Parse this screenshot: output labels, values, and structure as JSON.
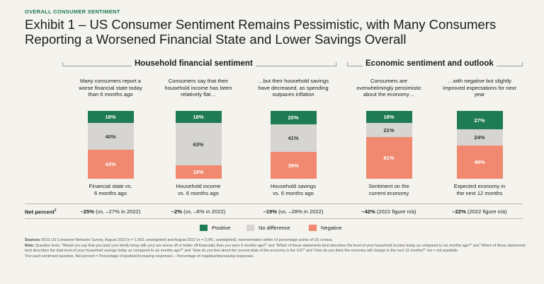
{
  "kicker": "OVERALL CONSUMER SENTIMENT",
  "title_line1": "Exhibit 1 – US Consumer Sentiment Remains Pessimistic, with Many Consumers",
  "title_line2": "Reporting a Worsened Financial State and Lower Savings Overall",
  "sections": {
    "household": "Household financial sentiment",
    "economic": "Economic sentiment and outlook"
  },
  "colors": {
    "positive": "#1e7b53",
    "neutral": "#d6d5d1",
    "negative": "#f08970"
  },
  "chart_data": {
    "type": "bar",
    "stacked": true,
    "normalized_percent": true,
    "categories": [
      "Financial state vs. 6 months ago",
      "Household income vs. 6 months ago",
      "Household savings vs. 6 months ago",
      "Sentiment on the current economy",
      "Expected economy in the next 12 months"
    ],
    "series": [
      {
        "name": "Positive",
        "values": [
          18,
          18,
          20,
          18,
          27
        ]
      },
      {
        "name": "No difference",
        "values": [
          40,
          63,
          41,
          21,
          24
        ]
      },
      {
        "name": "Negative",
        "values": [
          43,
          19,
          39,
          61,
          49
        ]
      }
    ],
    "legend_position": "bottom",
    "bars": [
      {
        "top_caption": "Many consumers report a worse financial state today than 6 months ago",
        "bottom_caption_l1": "Financial state vs.",
        "bottom_caption_l2": "6 months ago",
        "pos_label": "18%",
        "neu_label": "40%",
        "neg_label": "43%",
        "net_bold": "–25%",
        "net_rest": " (vs. –27% in 2022)"
      },
      {
        "top_caption": "Consumers say that their household income has been relatively flat…",
        "bottom_caption_l1": "Household income",
        "bottom_caption_l2": "vs. 6 months ago",
        "pos_label": "18%",
        "neu_label": "63%",
        "neg_label": "19%",
        "net_bold": "–2%",
        "net_rest": " (vs. –6% in 2022)"
      },
      {
        "top_caption": "…but their household savings have decreased, as spending outpaces inflation",
        "bottom_caption_l1": "Household savings",
        "bottom_caption_l2": "vs. 6 months ago",
        "pos_label": "20%",
        "neu_label": "41%",
        "neg_label": "39%",
        "net_bold": "–19%",
        "net_rest": " (vs. –28% in 2022)"
      },
      {
        "top_caption": "Consumers are overwhelmingly pessimistic about the economy…",
        "bottom_caption_l1": "Sentiment on the",
        "bottom_caption_l2": "current economy",
        "pos_label": "18%",
        "neu_label": "21%",
        "neg_label": "61%",
        "net_bold": "–42%",
        "net_rest": " (2022 figure n/a)"
      },
      {
        "top_caption": "…with negative but slightly improved expectations for next year",
        "bottom_caption_l1": "Expected economy in",
        "bottom_caption_l2": "the next 12 months",
        "pos_label": "27%",
        "neu_label": "24%",
        "neg_label": "49%",
        "net_bold": "–22%",
        "net_rest": " (2022 figure n/a)"
      }
    ]
  },
  "net_percent_label": "Net percent",
  "net_percent_sup": "1",
  "legend": {
    "positive": "Positive",
    "neutral": "No difference",
    "negative": "Negative"
  },
  "notes": {
    "sources_label": "Sources:",
    "sources": " BCG US Consumer Behavior Survey, August 2023 (n = 1,993, unweighted) and August 2022 (n = 2,041, unweighted), representative within ±3 percentage points of US census.",
    "note_label": "Note:",
    "note": " Question texts: “Would you say that you (and your family living with you) are worse off or better off financially than you were 6 months ago?” and “Which of these statements best describes the level of your household income today as compared to six months ago?” and “Which of these statements best describes the total level of your household savings today as compared to six months ago?” and “How do you feel about the current state of the economy in the US?” and “How do you think the economy will change in the next 12 months?” n/a = not available.",
    "footnote": "¹For each sentiment question, Net percent = Percentage of positive/increasing responses – Percentage of negative/decreasing responses."
  }
}
